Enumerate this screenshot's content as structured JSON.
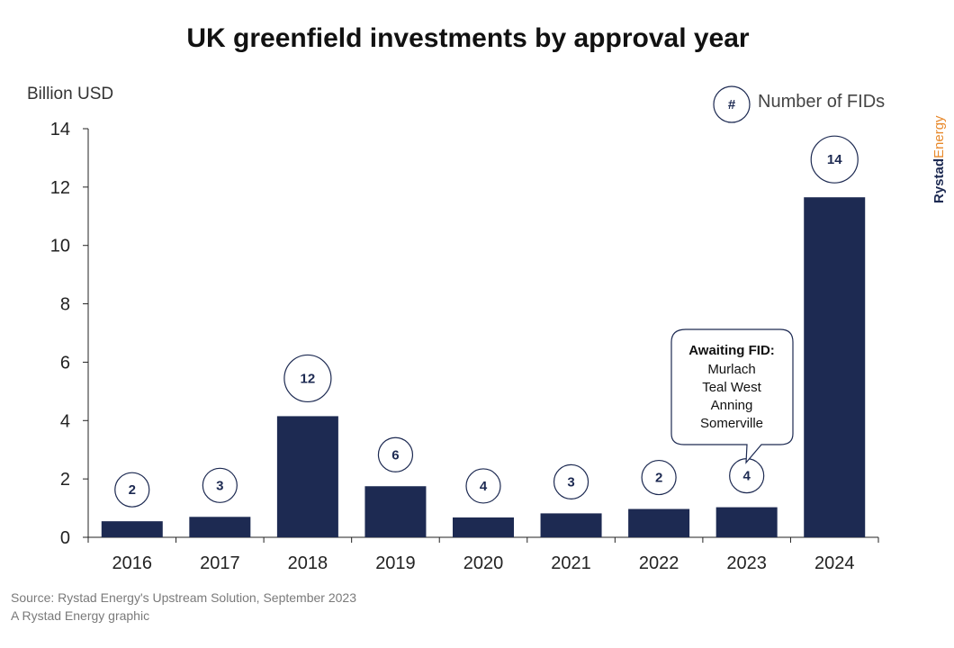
{
  "chart_data": {
    "type": "bar",
    "title": "UK greenfield investments by approval year",
    "ylabel": "Billion USD",
    "xlabel": "",
    "ylim": [
      0,
      14
    ],
    "yticks": [
      0,
      2,
      4,
      6,
      8,
      10,
      12,
      14
    ],
    "categories": [
      "2016",
      "2017",
      "2018",
      "2019",
      "2020",
      "2021",
      "2022",
      "2023",
      "2024"
    ],
    "values": [
      0.55,
      0.7,
      4.15,
      1.75,
      0.68,
      0.82,
      0.97,
      1.03,
      11.65
    ],
    "fid_counts": [
      "2",
      "3",
      "12",
      "6",
      "4",
      "3",
      "2",
      "4",
      "14"
    ],
    "bar_color": "#1d2a52",
    "legend": {
      "symbol": "#",
      "label": "Number of FIDs"
    },
    "callout": {
      "title": "Awaiting FID:",
      "lines": [
        "Murlach",
        "Teal West",
        "Anning",
        "Somerville"
      ]
    }
  },
  "source": "Source: Rystad Energy's Upstream Solution, September 2023",
  "credit": "A Rystad Energy graphic",
  "brand": {
    "part1": "Rystad",
    "part2": "Energy",
    "color1": "#1d2a52",
    "color2": "#e8892b"
  }
}
